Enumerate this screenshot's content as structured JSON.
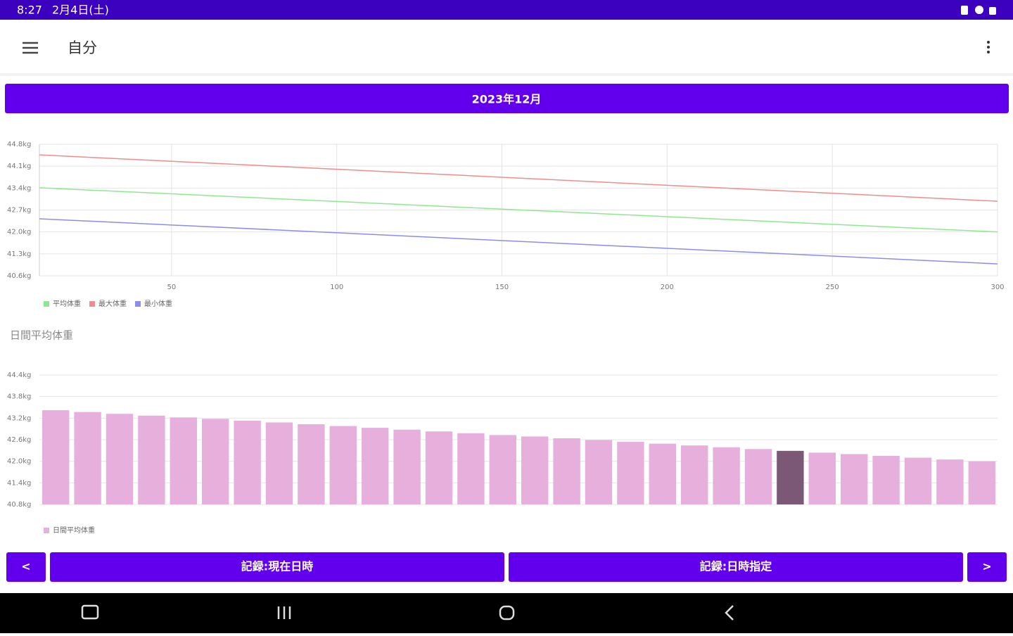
{
  "status_bar": {
    "time": "8:27",
    "date": "2月4日(土)"
  },
  "app_bar": {
    "title": "自分"
  },
  "month_button": "2023年12月",
  "chart_data": [
    {
      "type": "line",
      "x": [
        10,
        300
      ],
      "xlim": [
        10,
        300
      ],
      "xticks": [
        50,
        100,
        150,
        200,
        250,
        300
      ],
      "ylim": [
        40.6,
        44.8
      ],
      "yticks": [
        {
          "value": 40.6,
          "label": "40.6kg"
        },
        {
          "value": 41.3,
          "label": "41.3kg"
        },
        {
          "value": 42.0,
          "label": "42.0kg"
        },
        {
          "value": 42.7,
          "label": "42.7kg"
        },
        {
          "value": 43.4,
          "label": "43.4kg"
        },
        {
          "value": 44.1,
          "label": "44.1kg"
        },
        {
          "value": 44.8,
          "label": "44.8kg"
        }
      ],
      "grid": true,
      "legend": "bottom-left",
      "series": [
        {
          "name": "平均体重",
          "color": "#8fe88f",
          "values": [
            43.41,
            42.0
          ]
        },
        {
          "name": "最大体重",
          "color": "#f08c8c",
          "values": [
            44.46,
            42.98
          ]
        },
        {
          "name": "最小体重",
          "color": "#8c8cf0",
          "values": [
            42.42,
            40.98
          ]
        }
      ]
    },
    {
      "type": "bar",
      "title": "日間平均体重",
      "ylim": [
        40.8,
        44.4
      ],
      "yticks": [
        {
          "value": 40.8,
          "label": "40.8kg"
        },
        {
          "value": 41.4,
          "label": "41.4kg"
        },
        {
          "value": 42.0,
          "label": "42.0kg"
        },
        {
          "value": 42.6,
          "label": "42.6kg"
        },
        {
          "value": 43.2,
          "label": "43.2kg"
        },
        {
          "value": 43.8,
          "label": "43.8kg"
        },
        {
          "value": 44.4,
          "label": "44.4kg"
        }
      ],
      "grid": true,
      "legend": "bottom-left",
      "highlight": {
        "index": 23,
        "color": "#7b5876"
      },
      "series": [
        {
          "name": "日間平均体重",
          "color": "#e6afdc",
          "values": [
            43.42,
            43.37,
            43.32,
            43.27,
            43.22,
            43.18,
            43.13,
            43.08,
            43.03,
            42.98,
            42.93,
            42.88,
            42.83,
            42.78,
            42.73,
            42.69,
            42.64,
            42.59,
            42.54,
            42.49,
            42.44,
            42.39,
            42.34,
            42.29,
            42.24,
            42.2,
            42.15,
            42.1,
            42.05,
            42.0
          ]
        }
      ]
    }
  ],
  "buttons": {
    "prev": "<",
    "record_now": "記録:現在日時",
    "record_date": "記録:日時指定",
    "next": ">"
  }
}
